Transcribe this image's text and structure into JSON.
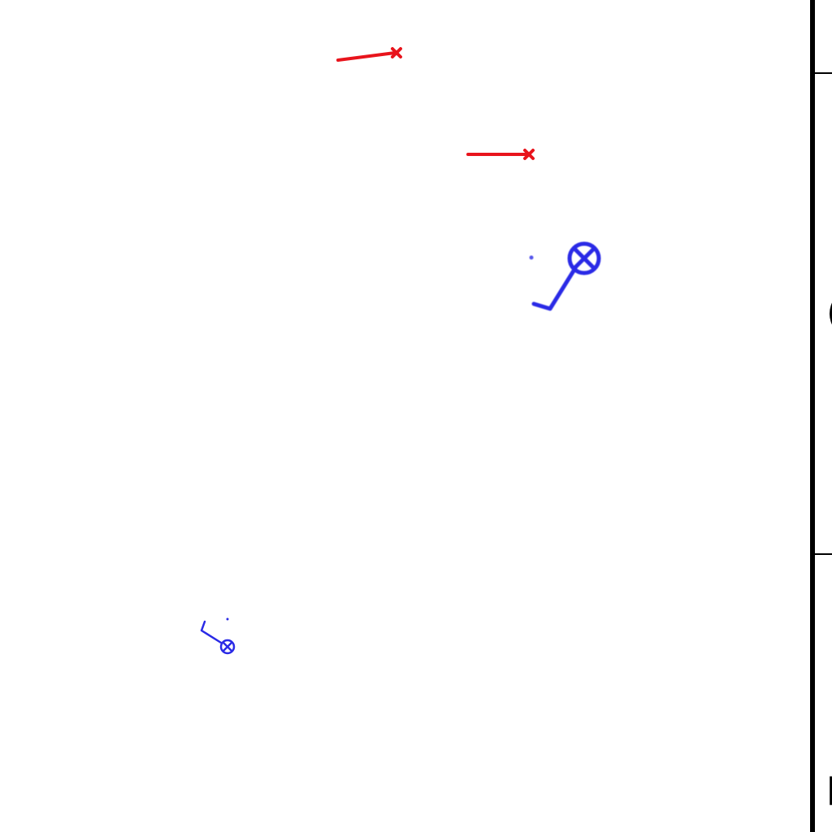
{
  "colors": {
    "background": "#ffffff",
    "enemy": "#e8141c",
    "player": "#2a2ae6",
    "panel_border": "#000000"
  },
  "sprites": {
    "enemy_marker_icon": "red-x-marker",
    "player_marker_icon": "blue-circle-cross-marker"
  },
  "side_panel": {
    "middle_letter": "(",
    "bottom_letter": "h"
  }
}
